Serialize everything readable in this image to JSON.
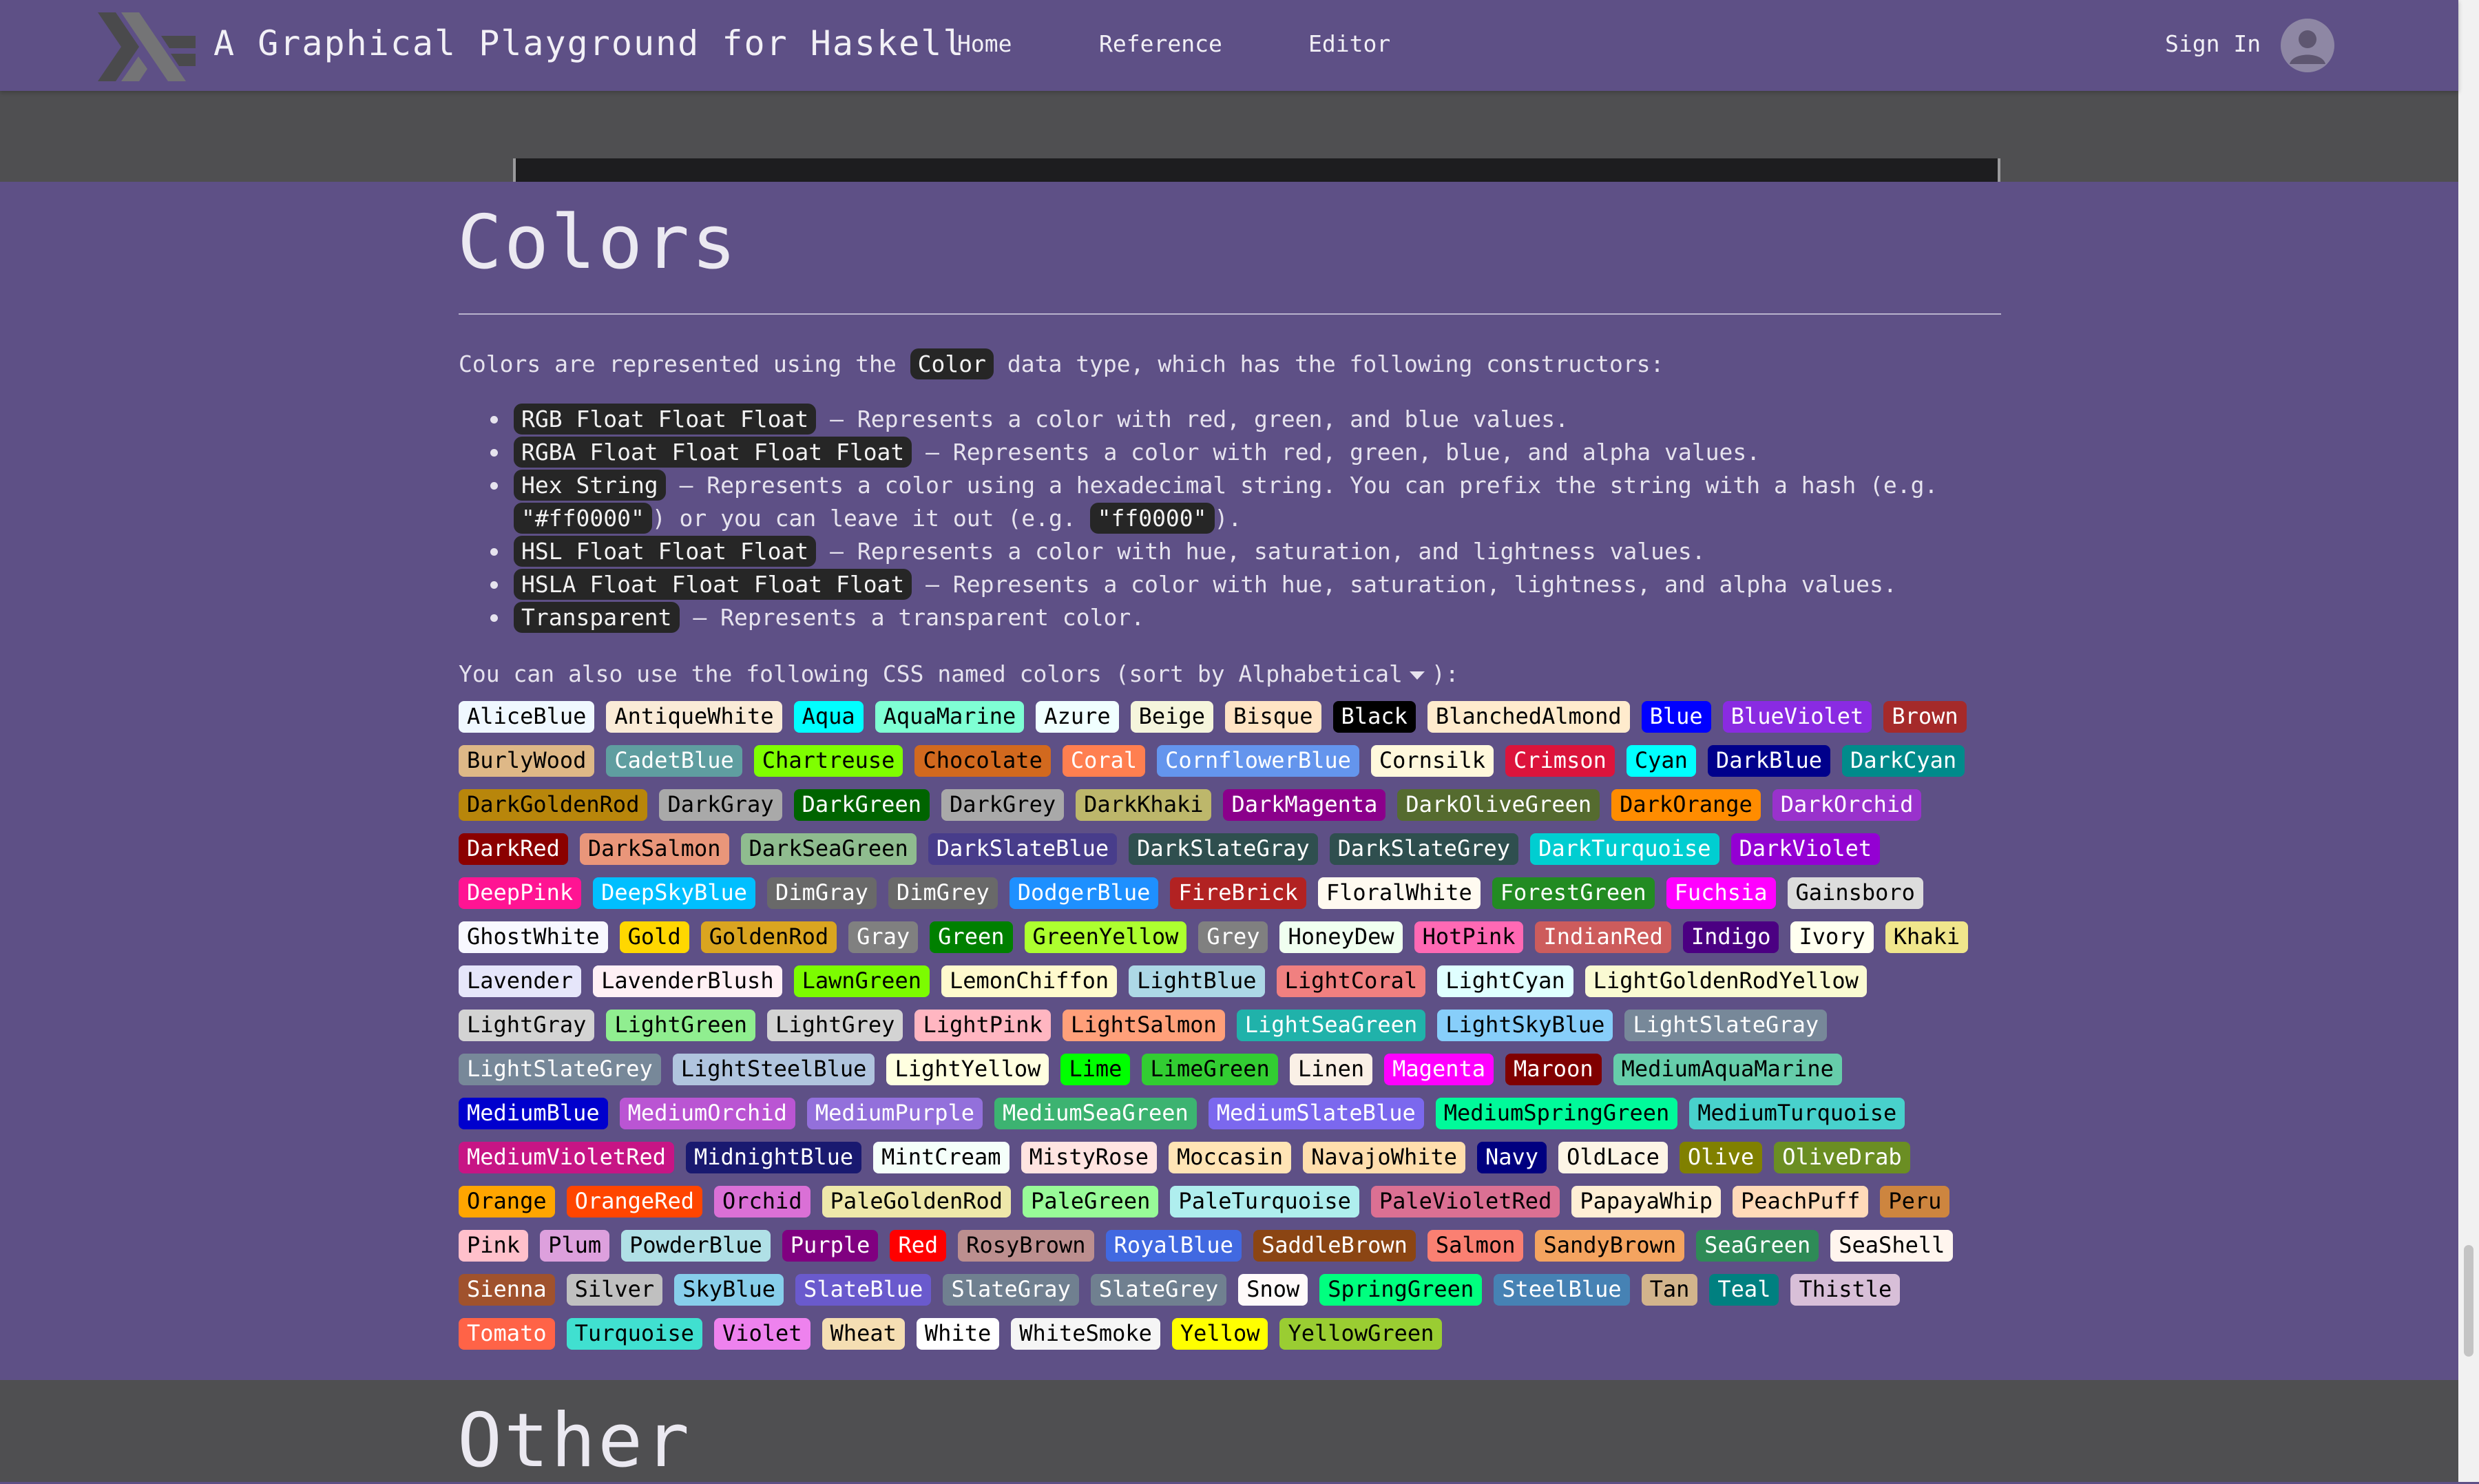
{
  "nav": {
    "site_title": "A Graphical Playground for Haskell",
    "links": [
      "Home",
      "Reference",
      "Editor"
    ],
    "sign_in": "Sign In"
  },
  "colors_section": {
    "heading": "Colors",
    "intro_before": "Colors are represented using the",
    "intro_code": "Color",
    "intro_after": "data type, which has the following constructors:",
    "constructors": [
      {
        "code": "RGB Float Float Float",
        "desc": "— Represents a color with red, green, and blue values."
      },
      {
        "code": "RGBA Float Float Float Float",
        "desc": "— Represents a color with red, green, blue, and alpha values."
      },
      {
        "code": "Hex String",
        "desc": "— Represents a color using a hexadecimal string. You can prefix the string with a hash (e.g.",
        "code2": "\"#ff0000\"",
        "desc2": ") or you can leave it out (e.g.",
        "code3": "\"ff0000\"",
        "desc3": ")."
      },
      {
        "code": "HSL Float Float Float",
        "desc": "— Represents a color with hue, saturation, and lightness values."
      },
      {
        "code": "HSLA Float Float Float Float",
        "desc": "— Represents a color with hue, saturation, lightness, and alpha values."
      },
      {
        "code": "Transparent",
        "desc": "— Represents a transparent color."
      }
    ],
    "named_intro": "You can also use the following CSS named colors (sort by",
    "sort_value": "Alphabetical",
    "named_outro": "):",
    "named_colors": [
      {
        "name": "AliceBlue",
        "bg": "#F0F8FF",
        "fg": "#000000"
      },
      {
        "name": "AntiqueWhite",
        "bg": "#FAEBD7",
        "fg": "#000000"
      },
      {
        "name": "Aqua",
        "bg": "#00FFFF",
        "fg": "#000000"
      },
      {
        "name": "AquaMarine",
        "bg": "#7FFFD4",
        "fg": "#000000"
      },
      {
        "name": "Azure",
        "bg": "#F0FFFF",
        "fg": "#000000"
      },
      {
        "name": "Beige",
        "bg": "#F5F5DC",
        "fg": "#000000"
      },
      {
        "name": "Bisque",
        "bg": "#FFE4C4",
        "fg": "#000000"
      },
      {
        "name": "Black",
        "bg": "#000000",
        "fg": "#FFFFFF"
      },
      {
        "name": "BlanchedAlmond",
        "bg": "#FFEBCD",
        "fg": "#000000"
      },
      {
        "name": "Blue",
        "bg": "#0000FF",
        "fg": "#FFFFFF"
      },
      {
        "name": "BlueViolet",
        "bg": "#8A2BE2",
        "fg": "#FFFFFF"
      },
      {
        "name": "Brown",
        "bg": "#A52A2A",
        "fg": "#FFFFFF"
      },
      {
        "name": "BurlyWood",
        "bg": "#DEB887",
        "fg": "#000000"
      },
      {
        "name": "CadetBlue",
        "bg": "#5F9EA0",
        "fg": "#FFFFFF"
      },
      {
        "name": "Chartreuse",
        "bg": "#7FFF00",
        "fg": "#000000"
      },
      {
        "name": "Chocolate",
        "bg": "#D2691E",
        "fg": "#000000"
      },
      {
        "name": "Coral",
        "bg": "#FF7F50",
        "fg": "#FFFFFF"
      },
      {
        "name": "CornflowerBlue",
        "bg": "#6495ED",
        "fg": "#FFFFFF"
      },
      {
        "name": "Cornsilk",
        "bg": "#FFF8DC",
        "fg": "#000000"
      },
      {
        "name": "Crimson",
        "bg": "#DC143C",
        "fg": "#FFFFFF"
      },
      {
        "name": "Cyan",
        "bg": "#00FFFF",
        "fg": "#000000"
      },
      {
        "name": "DarkBlue",
        "bg": "#00008B",
        "fg": "#FFFFFF"
      },
      {
        "name": "DarkCyan",
        "bg": "#008B8B",
        "fg": "#FFFFFF"
      },
      {
        "name": "DarkGoldenRod",
        "bg": "#B8860B",
        "fg": "#000000"
      },
      {
        "name": "DarkGray",
        "bg": "#A9A9A9",
        "fg": "#000000"
      },
      {
        "name": "DarkGreen",
        "bg": "#006400",
        "fg": "#FFFFFF"
      },
      {
        "name": "DarkGrey",
        "bg": "#A9A9A9",
        "fg": "#000000"
      },
      {
        "name": "DarkKhaki",
        "bg": "#BDB76B",
        "fg": "#000000"
      },
      {
        "name": "DarkMagenta",
        "bg": "#8B008B",
        "fg": "#FFFFFF"
      },
      {
        "name": "DarkOliveGreen",
        "bg": "#556B2F",
        "fg": "#FFFFFF"
      },
      {
        "name": "DarkOrange",
        "bg": "#FF8C00",
        "fg": "#000000"
      },
      {
        "name": "DarkOrchid",
        "bg": "#9932CC",
        "fg": "#FFFFFF"
      },
      {
        "name": "DarkRed",
        "bg": "#8B0000",
        "fg": "#FFFFFF"
      },
      {
        "name": "DarkSalmon",
        "bg": "#E9967A",
        "fg": "#000000"
      },
      {
        "name": "DarkSeaGreen",
        "bg": "#8FBC8F",
        "fg": "#000000"
      },
      {
        "name": "DarkSlateBlue",
        "bg": "#483D8B",
        "fg": "#FFFFFF"
      },
      {
        "name": "DarkSlateGray",
        "bg": "#2F4F4F",
        "fg": "#FFFFFF"
      },
      {
        "name": "DarkSlateGrey",
        "bg": "#2F4F4F",
        "fg": "#FFFFFF"
      },
      {
        "name": "DarkTurquoise",
        "bg": "#00CED1",
        "fg": "#FFFFFF"
      },
      {
        "name": "DarkViolet",
        "bg": "#9400D3",
        "fg": "#FFFFFF"
      },
      {
        "name": "DeepPink",
        "bg": "#FF1493",
        "fg": "#FFFFFF"
      },
      {
        "name": "DeepSkyBlue",
        "bg": "#00BFFF",
        "fg": "#FFFFFF"
      },
      {
        "name": "DimGray",
        "bg": "#696969",
        "fg": "#FFFFFF"
      },
      {
        "name": "DimGrey",
        "bg": "#696969",
        "fg": "#FFFFFF"
      },
      {
        "name": "DodgerBlue",
        "bg": "#1E90FF",
        "fg": "#FFFFFF"
      },
      {
        "name": "FireBrick",
        "bg": "#B22222",
        "fg": "#FFFFFF"
      },
      {
        "name": "FloralWhite",
        "bg": "#FFFAF0",
        "fg": "#000000"
      },
      {
        "name": "ForestGreen",
        "bg": "#228B22",
        "fg": "#FFFFFF"
      },
      {
        "name": "Fuchsia",
        "bg": "#FF00FF",
        "fg": "#FFFFFF"
      },
      {
        "name": "Gainsboro",
        "bg": "#DCDCDC",
        "fg": "#000000"
      },
      {
        "name": "GhostWhite",
        "bg": "#F8F8FF",
        "fg": "#000000"
      },
      {
        "name": "Gold",
        "bg": "#FFD700",
        "fg": "#000000"
      },
      {
        "name": "GoldenRod",
        "bg": "#DAA520",
        "fg": "#000000"
      },
      {
        "name": "Gray",
        "bg": "#808080",
        "fg": "#FFFFFF"
      },
      {
        "name": "Green",
        "bg": "#008000",
        "fg": "#FFFFFF"
      },
      {
        "name": "GreenYellow",
        "bg": "#ADFF2F",
        "fg": "#000000"
      },
      {
        "name": "Grey",
        "bg": "#808080",
        "fg": "#FFFFFF"
      },
      {
        "name": "HoneyDew",
        "bg": "#F0FFF0",
        "fg": "#000000"
      },
      {
        "name": "HotPink",
        "bg": "#FF69B4",
        "fg": "#000000"
      },
      {
        "name": "IndianRed",
        "bg": "#CD5C5C",
        "fg": "#FFFFFF"
      },
      {
        "name": "Indigo",
        "bg": "#4B0082",
        "fg": "#FFFFFF"
      },
      {
        "name": "Ivory",
        "bg": "#FFFFF0",
        "fg": "#000000"
      },
      {
        "name": "Khaki",
        "bg": "#F0E68C",
        "fg": "#000000"
      },
      {
        "name": "Lavender",
        "bg": "#E6E6FA",
        "fg": "#000000"
      },
      {
        "name": "LavenderBlush",
        "bg": "#FFF0F5",
        "fg": "#000000"
      },
      {
        "name": "LawnGreen",
        "bg": "#7CFC00",
        "fg": "#000000"
      },
      {
        "name": "LemonChiffon",
        "bg": "#FFFACD",
        "fg": "#000000"
      },
      {
        "name": "LightBlue",
        "bg": "#ADD8E6",
        "fg": "#000000"
      },
      {
        "name": "LightCoral",
        "bg": "#F08080",
        "fg": "#000000"
      },
      {
        "name": "LightCyan",
        "bg": "#E0FFFF",
        "fg": "#000000"
      },
      {
        "name": "LightGoldenRodYellow",
        "bg": "#FAFAD2",
        "fg": "#000000"
      },
      {
        "name": "LightGray",
        "bg": "#D3D3D3",
        "fg": "#000000"
      },
      {
        "name": "LightGreen",
        "bg": "#90EE90",
        "fg": "#000000"
      },
      {
        "name": "LightGrey",
        "bg": "#D3D3D3",
        "fg": "#000000"
      },
      {
        "name": "LightPink",
        "bg": "#FFB6C1",
        "fg": "#000000"
      },
      {
        "name": "LightSalmon",
        "bg": "#FFA07A",
        "fg": "#000000"
      },
      {
        "name": "LightSeaGreen",
        "bg": "#20B2AA",
        "fg": "#FFFFFF"
      },
      {
        "name": "LightSkyBlue",
        "bg": "#87CEFA",
        "fg": "#000000"
      },
      {
        "name": "LightSlateGray",
        "bg": "#778899",
        "fg": "#FFFFFF"
      },
      {
        "name": "LightSlateGrey",
        "bg": "#778899",
        "fg": "#FFFFFF"
      },
      {
        "name": "LightSteelBlue",
        "bg": "#B0C4DE",
        "fg": "#000000"
      },
      {
        "name": "LightYellow",
        "bg": "#FFFFE0",
        "fg": "#000000"
      },
      {
        "name": "Lime",
        "bg": "#00FF00",
        "fg": "#000000"
      },
      {
        "name": "LimeGreen",
        "bg": "#32CD32",
        "fg": "#000000"
      },
      {
        "name": "Linen",
        "bg": "#FAF0E6",
        "fg": "#000000"
      },
      {
        "name": "Magenta",
        "bg": "#FF00FF",
        "fg": "#FFFFFF"
      },
      {
        "name": "Maroon",
        "bg": "#800000",
        "fg": "#FFFFFF"
      },
      {
        "name": "MediumAquaMarine",
        "bg": "#66CDAA",
        "fg": "#000000"
      },
      {
        "name": "MediumBlue",
        "bg": "#0000CD",
        "fg": "#FFFFFF"
      },
      {
        "name": "MediumOrchid",
        "bg": "#BA55D3",
        "fg": "#FFFFFF"
      },
      {
        "name": "MediumPurple",
        "bg": "#9370DB",
        "fg": "#FFFFFF"
      },
      {
        "name": "MediumSeaGreen",
        "bg": "#3CB371",
        "fg": "#FFFFFF"
      },
      {
        "name": "MediumSlateBlue",
        "bg": "#7B68EE",
        "fg": "#FFFFFF"
      },
      {
        "name": "MediumSpringGreen",
        "bg": "#00FA9A",
        "fg": "#000000"
      },
      {
        "name": "MediumTurquoise",
        "bg": "#48D1CC",
        "fg": "#000000"
      },
      {
        "name": "MediumVioletRed",
        "bg": "#C71585",
        "fg": "#FFFFFF"
      },
      {
        "name": "MidnightBlue",
        "bg": "#191970",
        "fg": "#FFFFFF"
      },
      {
        "name": "MintCream",
        "bg": "#F5FFFA",
        "fg": "#000000"
      },
      {
        "name": "MistyRose",
        "bg": "#FFE4E1",
        "fg": "#000000"
      },
      {
        "name": "Moccasin",
        "bg": "#FFE4B5",
        "fg": "#000000"
      },
      {
        "name": "NavajoWhite",
        "bg": "#FFDEAD",
        "fg": "#000000"
      },
      {
        "name": "Navy",
        "bg": "#000080",
        "fg": "#FFFFFF"
      },
      {
        "name": "OldLace",
        "bg": "#FDF5E6",
        "fg": "#000000"
      },
      {
        "name": "Olive",
        "bg": "#808000",
        "fg": "#FFFFFF"
      },
      {
        "name": "OliveDrab",
        "bg": "#6B8E23",
        "fg": "#FFFFFF"
      },
      {
        "name": "Orange",
        "bg": "#FFA500",
        "fg": "#000000"
      },
      {
        "name": "OrangeRed",
        "bg": "#FF4500",
        "fg": "#FFFFFF"
      },
      {
        "name": "Orchid",
        "bg": "#DA70D6",
        "fg": "#000000"
      },
      {
        "name": "PaleGoldenRod",
        "bg": "#EEE8AA",
        "fg": "#000000"
      },
      {
        "name": "PaleGreen",
        "bg": "#98FB98",
        "fg": "#000000"
      },
      {
        "name": "PaleTurquoise",
        "bg": "#AFEEEE",
        "fg": "#000000"
      },
      {
        "name": "PaleVioletRed",
        "bg": "#DB7093",
        "fg": "#000000"
      },
      {
        "name": "PapayaWhip",
        "bg": "#FFEFD5",
        "fg": "#000000"
      },
      {
        "name": "PeachPuff",
        "bg": "#FFDAB9",
        "fg": "#000000"
      },
      {
        "name": "Peru",
        "bg": "#CD853F",
        "fg": "#000000"
      },
      {
        "name": "Pink",
        "bg": "#FFC0CB",
        "fg": "#000000"
      },
      {
        "name": "Plum",
        "bg": "#DDA0DD",
        "fg": "#000000"
      },
      {
        "name": "PowderBlue",
        "bg": "#B0E0E6",
        "fg": "#000000"
      },
      {
        "name": "Purple",
        "bg": "#800080",
        "fg": "#FFFFFF"
      },
      {
        "name": "Red",
        "bg": "#FF0000",
        "fg": "#FFFFFF"
      },
      {
        "name": "RosyBrown",
        "bg": "#BC8F8F",
        "fg": "#000000"
      },
      {
        "name": "RoyalBlue",
        "bg": "#4169E1",
        "fg": "#FFFFFF"
      },
      {
        "name": "SaddleBrown",
        "bg": "#8B4513",
        "fg": "#FFFFFF"
      },
      {
        "name": "Salmon",
        "bg": "#FA8072",
        "fg": "#000000"
      },
      {
        "name": "SandyBrown",
        "bg": "#F4A460",
        "fg": "#000000"
      },
      {
        "name": "SeaGreen",
        "bg": "#2E8B57",
        "fg": "#FFFFFF"
      },
      {
        "name": "SeaShell",
        "bg": "#FFF5EE",
        "fg": "#000000"
      },
      {
        "name": "Sienna",
        "bg": "#A0522D",
        "fg": "#FFFFFF"
      },
      {
        "name": "Silver",
        "bg": "#C0C0C0",
        "fg": "#000000"
      },
      {
        "name": "SkyBlue",
        "bg": "#87CEEB",
        "fg": "#000000"
      },
      {
        "name": "SlateBlue",
        "bg": "#6A5ACD",
        "fg": "#FFFFFF"
      },
      {
        "name": "SlateGray",
        "bg": "#708090",
        "fg": "#FFFFFF"
      },
      {
        "name": "SlateGrey",
        "bg": "#708090",
        "fg": "#FFFFFF"
      },
      {
        "name": "Snow",
        "bg": "#FFFAFA",
        "fg": "#000000"
      },
      {
        "name": "SpringGreen",
        "bg": "#00FF7F",
        "fg": "#000000"
      },
      {
        "name": "SteelBlue",
        "bg": "#4682B4",
        "fg": "#FFFFFF"
      },
      {
        "name": "Tan",
        "bg": "#D2B48C",
        "fg": "#000000"
      },
      {
        "name": "Teal",
        "bg": "#008080",
        "fg": "#FFFFFF"
      },
      {
        "name": "Thistle",
        "bg": "#D8BFD8",
        "fg": "#000000"
      },
      {
        "name": "Tomato",
        "bg": "#FF6347",
        "fg": "#FFFFFF"
      },
      {
        "name": "Turquoise",
        "bg": "#40E0D0",
        "fg": "#000000"
      },
      {
        "name": "Violet",
        "bg": "#EE82EE",
        "fg": "#000000"
      },
      {
        "name": "Wheat",
        "bg": "#F5DEB3",
        "fg": "#000000"
      },
      {
        "name": "White",
        "bg": "#FFFFFF",
        "fg": "#000000"
      },
      {
        "name": "WhiteSmoke",
        "bg": "#F5F5F5",
        "fg": "#000000"
      },
      {
        "name": "Yellow",
        "bg": "#FFFF00",
        "fg": "#000000"
      },
      {
        "name": "YellowGreen",
        "bg": "#9ACD32",
        "fg": "#000000"
      }
    ]
  },
  "other_section": {
    "heading": "Other"
  },
  "theme": {
    "header_bg": "#5e5086",
    "section_bg": "#5e5086",
    "band_bg": "#4f4f51",
    "code_bg": "#262626"
  },
  "icons": {
    "logo": "haskell-logo-icon",
    "avatar": "user-avatar-icon",
    "sort_caret": "caret-down-icon"
  }
}
